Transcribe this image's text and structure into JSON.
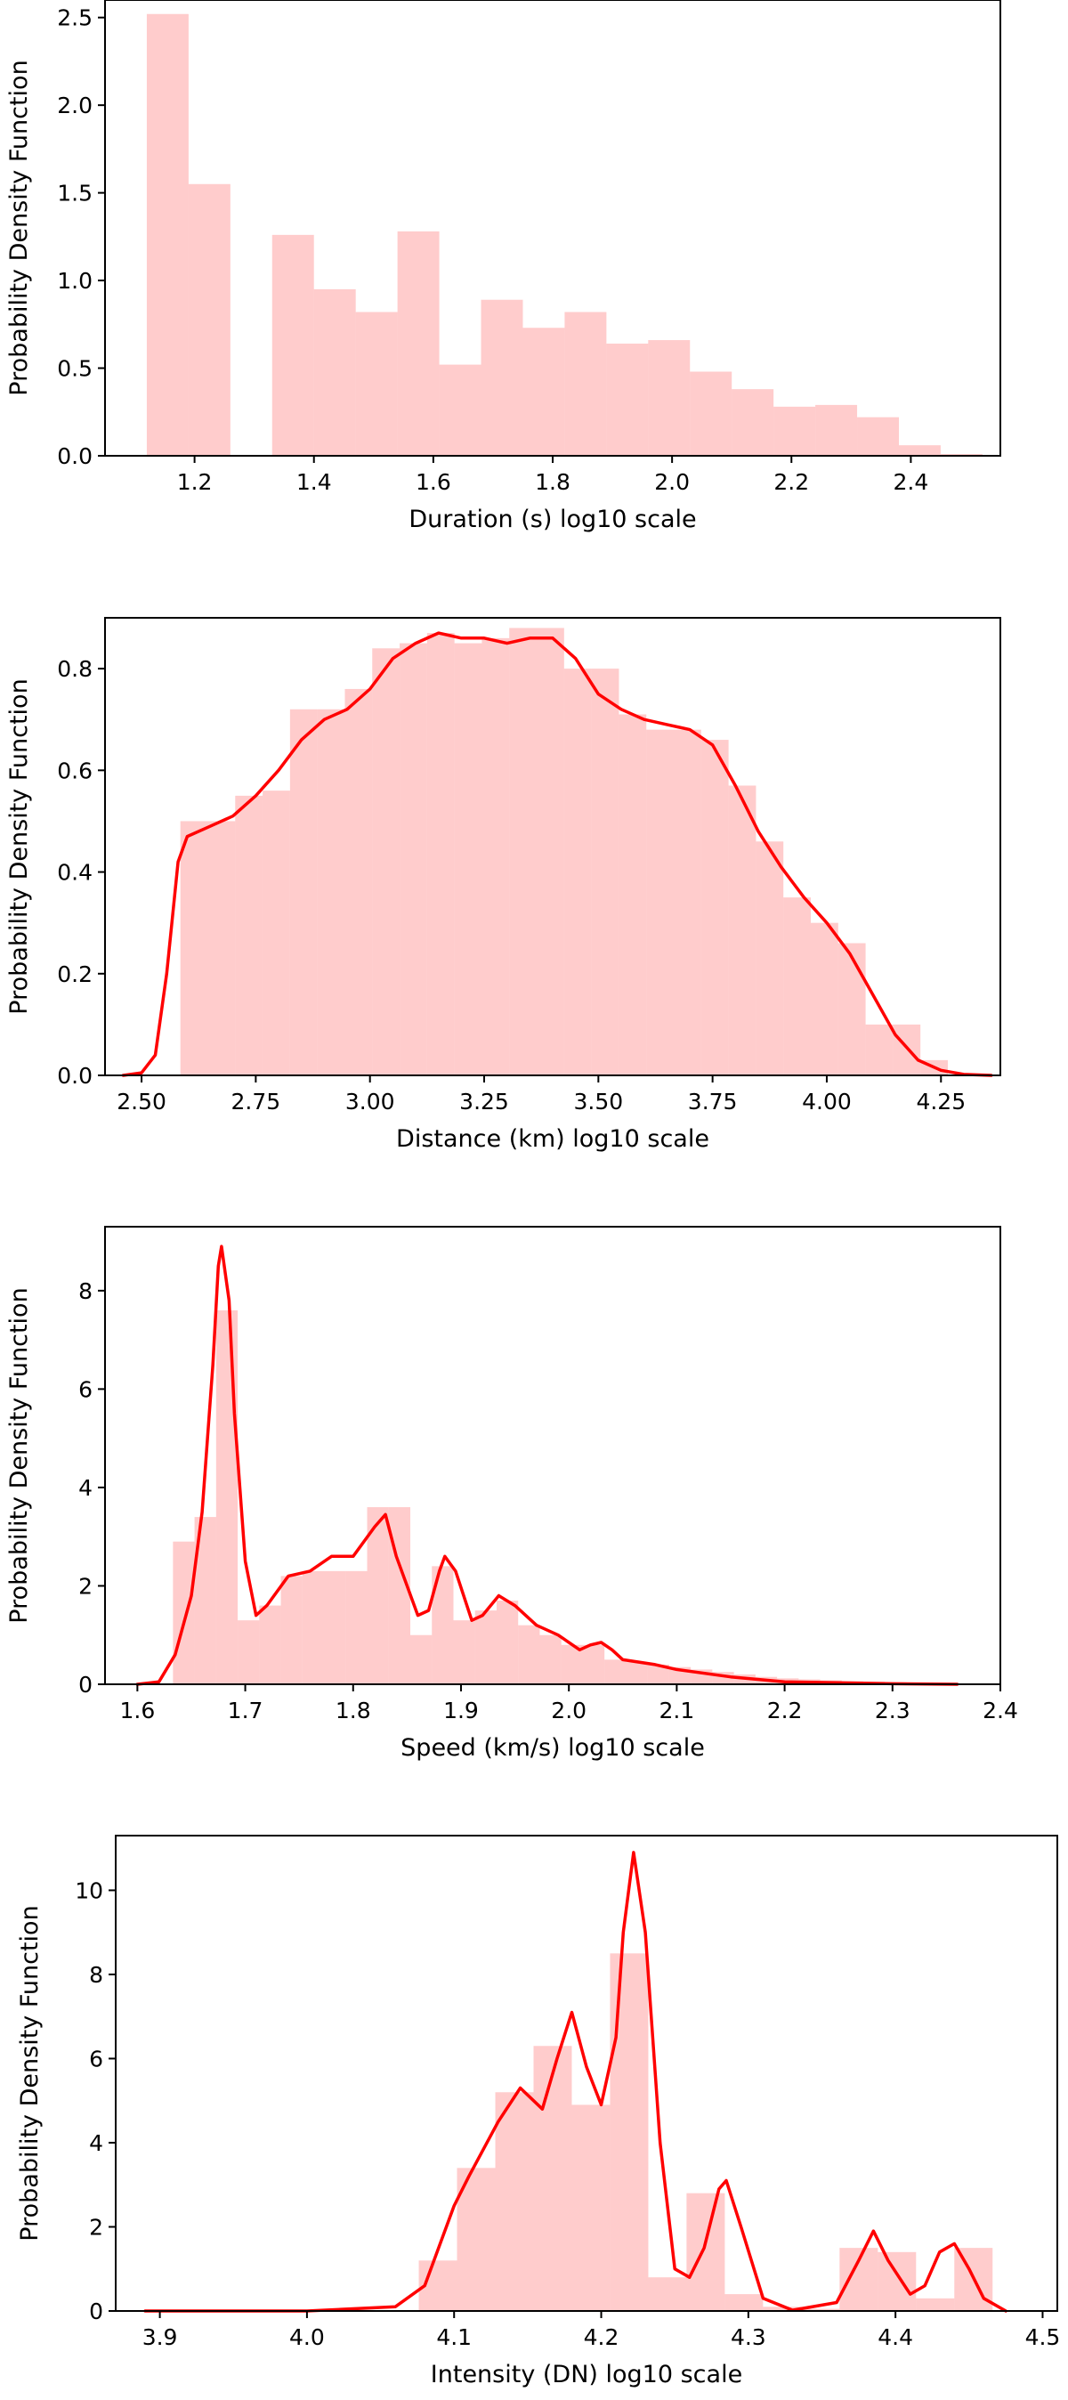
{
  "colors": {
    "bar": "#ff9999",
    "kde": "#ff0000",
    "frame": "#000000"
  },
  "chart_data": [
    {
      "type": "bar",
      "xlabel": "Duration (s) log10 scale",
      "ylabel": "Probability Density Function",
      "xlim": [
        1.05,
        2.55
      ],
      "ylim": [
        0,
        2.6
      ],
      "xticks": [
        1.2,
        1.4,
        1.6,
        1.8,
        2.0,
        2.2,
        2.4
      ],
      "xtick_labels": [
        "1.2",
        "1.4",
        "1.6",
        "1.8",
        "2.0",
        "2.2",
        "2.4"
      ],
      "yticks": [
        0.0,
        0.5,
        1.0,
        1.5,
        2.0,
        2.5
      ],
      "ytick_labels": [
        "0.0",
        "0.5",
        "1.0",
        "1.5",
        "2.0",
        "2.5"
      ],
      "bins": [
        {
          "x0": 1.12,
          "x1": 1.19,
          "value": 2.52
        },
        {
          "x0": 1.19,
          "x1": 1.26,
          "value": 1.55
        },
        {
          "x0": 1.33,
          "x1": 1.4,
          "value": 1.26
        },
        {
          "x0": 1.4,
          "x1": 1.47,
          "value": 0.95
        },
        {
          "x0": 1.47,
          "x1": 1.54,
          "value": 0.82
        },
        {
          "x0": 1.54,
          "x1": 1.61,
          "value": 1.28
        },
        {
          "x0": 1.61,
          "x1": 1.68,
          "value": 0.52
        },
        {
          "x0": 1.68,
          "x1": 1.75,
          "value": 0.89
        },
        {
          "x0": 1.75,
          "x1": 1.82,
          "value": 0.73
        },
        {
          "x0": 1.82,
          "x1": 1.89,
          "value": 0.82
        },
        {
          "x0": 1.89,
          "x1": 1.96,
          "value": 0.64
        },
        {
          "x0": 1.96,
          "x1": 2.03,
          "value": 0.66
        },
        {
          "x0": 2.03,
          "x1": 2.1,
          "value": 0.48
        },
        {
          "x0": 2.1,
          "x1": 2.17,
          "value": 0.38
        },
        {
          "x0": 2.17,
          "x1": 2.24,
          "value": 0.28
        },
        {
          "x0": 2.24,
          "x1": 2.31,
          "value": 0.29
        },
        {
          "x0": 2.31,
          "x1": 2.38,
          "value": 0.22
        },
        {
          "x0": 2.38,
          "x1": 2.45,
          "value": 0.06
        },
        {
          "x0": 2.45,
          "x1": 2.52,
          "value": 0.01
        }
      ],
      "kde": []
    },
    {
      "type": "bar",
      "xlabel": "Distance (km) log10 scale",
      "ylabel": "Probability Density Function",
      "xlim": [
        2.42,
        4.38
      ],
      "ylim": [
        0,
        0.9
      ],
      "xticks": [
        2.5,
        2.75,
        3.0,
        3.25,
        3.5,
        3.75,
        4.0,
        4.25
      ],
      "xtick_labels": [
        "2.50",
        "2.75",
        "3.00",
        "3.25",
        "3.50",
        "3.75",
        "4.00",
        "4.25"
      ],
      "yticks": [
        0.0,
        0.2,
        0.4,
        0.6,
        0.8
      ],
      "ytick_labels": [
        "0.0",
        "0.2",
        "0.4",
        "0.6",
        "0.8"
      ],
      "bins": [
        {
          "x0": 2.585,
          "x1": 2.645,
          "value": 0.5
        },
        {
          "x0": 2.645,
          "x1": 2.705,
          "value": 0.5
        },
        {
          "x0": 2.705,
          "x1": 2.765,
          "value": 0.55
        },
        {
          "x0": 2.765,
          "x1": 2.825,
          "value": 0.56
        },
        {
          "x0": 2.825,
          "x1": 2.885,
          "value": 0.72
        },
        {
          "x0": 2.885,
          "x1": 2.945,
          "value": 0.72
        },
        {
          "x0": 2.945,
          "x1": 3.005,
          "value": 0.76
        },
        {
          "x0": 3.005,
          "x1": 3.065,
          "value": 0.84
        },
        {
          "x0": 3.065,
          "x1": 3.125,
          "value": 0.85
        },
        {
          "x0": 3.125,
          "x1": 3.185,
          "value": 0.87
        },
        {
          "x0": 3.185,
          "x1": 3.245,
          "value": 0.85
        },
        {
          "x0": 3.245,
          "x1": 3.305,
          "value": 0.86
        },
        {
          "x0": 3.305,
          "x1": 3.365,
          "value": 0.88
        },
        {
          "x0": 3.365,
          "x1": 3.425,
          "value": 0.88
        },
        {
          "x0": 3.425,
          "x1": 3.485,
          "value": 0.8
        },
        {
          "x0": 3.485,
          "x1": 3.545,
          "value": 0.8
        },
        {
          "x0": 3.545,
          "x1": 3.605,
          "value": 0.71
        },
        {
          "x0": 3.605,
          "x1": 3.665,
          "value": 0.68
        },
        {
          "x0": 3.665,
          "x1": 3.725,
          "value": 0.68
        },
        {
          "x0": 3.725,
          "x1": 3.785,
          "value": 0.66
        },
        {
          "x0": 3.785,
          "x1": 3.845,
          "value": 0.57
        },
        {
          "x0": 3.845,
          "x1": 3.905,
          "value": 0.46
        },
        {
          "x0": 3.905,
          "x1": 3.965,
          "value": 0.35
        },
        {
          "x0": 3.965,
          "x1": 4.025,
          "value": 0.3
        },
        {
          "x0": 4.025,
          "x1": 4.085,
          "value": 0.26
        },
        {
          "x0": 4.085,
          "x1": 4.145,
          "value": 0.1
        },
        {
          "x0": 4.145,
          "x1": 4.205,
          "value": 0.1
        },
        {
          "x0": 4.205,
          "x1": 4.265,
          "value": 0.03
        }
      ],
      "kde": [
        [
          2.46,
          0.0
        ],
        [
          2.5,
          0.005
        ],
        [
          2.53,
          0.04
        ],
        [
          2.555,
          0.2
        ],
        [
          2.58,
          0.42
        ],
        [
          2.6,
          0.47
        ],
        [
          2.65,
          0.49
        ],
        [
          2.7,
          0.51
        ],
        [
          2.75,
          0.55
        ],
        [
          2.8,
          0.6
        ],
        [
          2.85,
          0.66
        ],
        [
          2.9,
          0.7
        ],
        [
          2.95,
          0.72
        ],
        [
          3.0,
          0.76
        ],
        [
          3.05,
          0.82
        ],
        [
          3.1,
          0.85
        ],
        [
          3.15,
          0.87
        ],
        [
          3.2,
          0.86
        ],
        [
          3.25,
          0.86
        ],
        [
          3.3,
          0.85
        ],
        [
          3.35,
          0.86
        ],
        [
          3.4,
          0.86
        ],
        [
          3.45,
          0.82
        ],
        [
          3.5,
          0.75
        ],
        [
          3.55,
          0.72
        ],
        [
          3.6,
          0.7
        ],
        [
          3.65,
          0.69
        ],
        [
          3.7,
          0.68
        ],
        [
          3.75,
          0.65
        ],
        [
          3.8,
          0.57
        ],
        [
          3.85,
          0.48
        ],
        [
          3.9,
          0.41
        ],
        [
          3.95,
          0.35
        ],
        [
          4.0,
          0.3
        ],
        [
          4.05,
          0.24
        ],
        [
          4.1,
          0.16
        ],
        [
          4.15,
          0.08
        ],
        [
          4.2,
          0.03
        ],
        [
          4.25,
          0.01
        ],
        [
          4.3,
          0.002
        ],
        [
          4.36,
          0.0
        ]
      ]
    },
    {
      "type": "bar",
      "xlabel": "Speed (km/s) log10 scale",
      "ylabel": "Probability Density Function",
      "xlim": [
        1.57,
        2.4
      ],
      "ylim": [
        0,
        9.3
      ],
      "xticks": [
        1.6,
        1.7,
        1.8,
        1.9,
        2.0,
        2.1,
        2.2,
        2.3,
        2.4
      ],
      "xtick_labels": [
        "1.6",
        "1.7",
        "1.8",
        "1.9",
        "2.0",
        "2.1",
        "2.2",
        "2.3",
        "2.4"
      ],
      "yticks": [
        0,
        2,
        4,
        6,
        8
      ],
      "ytick_labels": [
        "0",
        "2",
        "4",
        "6",
        "8"
      ],
      "bins": [
        {
          "x0": 1.633,
          "x1": 1.653,
          "value": 2.9
        },
        {
          "x0": 1.653,
          "x1": 1.673,
          "value": 3.4
        },
        {
          "x0": 1.673,
          "x1": 1.693,
          "value": 7.6
        },
        {
          "x0": 1.693,
          "x1": 1.713,
          "value": 1.3
        },
        {
          "x0": 1.713,
          "x1": 1.733,
          "value": 1.6
        },
        {
          "x0": 1.733,
          "x1": 1.753,
          "value": 2.2
        },
        {
          "x0": 1.753,
          "x1": 1.773,
          "value": 2.3
        },
        {
          "x0": 1.773,
          "x1": 1.793,
          "value": 2.3
        },
        {
          "x0": 1.793,
          "x1": 1.813,
          "value": 2.3
        },
        {
          "x0": 1.813,
          "x1": 1.833,
          "value": 3.6
        },
        {
          "x0": 1.833,
          "x1": 1.853,
          "value": 3.6
        },
        {
          "x0": 1.853,
          "x1": 1.873,
          "value": 1.0
        },
        {
          "x0": 1.873,
          "x1": 1.893,
          "value": 2.4
        },
        {
          "x0": 1.893,
          "x1": 1.913,
          "value": 1.3
        },
        {
          "x0": 1.913,
          "x1": 1.933,
          "value": 1.5
        },
        {
          "x0": 1.933,
          "x1": 1.953,
          "value": 1.7
        },
        {
          "x0": 1.953,
          "x1": 1.973,
          "value": 1.2
        },
        {
          "x0": 1.973,
          "x1": 1.993,
          "value": 1.0
        },
        {
          "x0": 1.993,
          "x1": 2.013,
          "value": 0.8
        },
        {
          "x0": 2.013,
          "x1": 2.033,
          "value": 0.8
        },
        {
          "x0": 2.033,
          "x1": 2.053,
          "value": 0.5
        },
        {
          "x0": 2.053,
          "x1": 2.073,
          "value": 0.45
        },
        {
          "x0": 2.073,
          "x1": 2.093,
          "value": 0.4
        },
        {
          "x0": 2.093,
          "x1": 2.113,
          "value": 0.35
        },
        {
          "x0": 2.113,
          "x1": 2.133,
          "value": 0.3
        },
        {
          "x0": 2.133,
          "x1": 2.153,
          "value": 0.25
        },
        {
          "x0": 2.153,
          "x1": 2.173,
          "value": 0.2
        },
        {
          "x0": 2.173,
          "x1": 2.193,
          "value": 0.15
        },
        {
          "x0": 2.193,
          "x1": 2.213,
          "value": 0.12
        },
        {
          "x0": 2.213,
          "x1": 2.233,
          "value": 0.1
        },
        {
          "x0": 2.233,
          "x1": 2.253,
          "value": 0.08
        },
        {
          "x0": 2.253,
          "x1": 2.273,
          "value": 0.06
        },
        {
          "x0": 2.273,
          "x1": 2.293,
          "value": 0.05
        },
        {
          "x0": 2.293,
          "x1": 2.313,
          "value": 0.04
        },
        {
          "x0": 2.313,
          "x1": 2.333,
          "value": 0.03
        },
        {
          "x0": 2.333,
          "x1": 2.353,
          "value": 0.02
        }
      ],
      "kde": [
        [
          1.6,
          0.0
        ],
        [
          1.62,
          0.05
        ],
        [
          1.635,
          0.6
        ],
        [
          1.65,
          1.8
        ],
        [
          1.66,
          3.5
        ],
        [
          1.67,
          6.5
        ],
        [
          1.675,
          8.5
        ],
        [
          1.678,
          8.9
        ],
        [
          1.685,
          7.8
        ],
        [
          1.69,
          5.5
        ],
        [
          1.7,
          2.5
        ],
        [
          1.71,
          1.4
        ],
        [
          1.72,
          1.6
        ],
        [
          1.74,
          2.2
        ],
        [
          1.76,
          2.3
        ],
        [
          1.78,
          2.6
        ],
        [
          1.8,
          2.6
        ],
        [
          1.82,
          3.2
        ],
        [
          1.83,
          3.45
        ],
        [
          1.84,
          2.6
        ],
        [
          1.86,
          1.4
        ],
        [
          1.87,
          1.5
        ],
        [
          1.88,
          2.3
        ],
        [
          1.885,
          2.6
        ],
        [
          1.895,
          2.3
        ],
        [
          1.91,
          1.3
        ],
        [
          1.92,
          1.4
        ],
        [
          1.935,
          1.8
        ],
        [
          1.95,
          1.6
        ],
        [
          1.97,
          1.2
        ],
        [
          1.99,
          1.0
        ],
        [
          2.01,
          0.7
        ],
        [
          2.02,
          0.8
        ],
        [
          2.03,
          0.85
        ],
        [
          2.04,
          0.7
        ],
        [
          2.05,
          0.5
        ],
        [
          2.08,
          0.4
        ],
        [
          2.1,
          0.3
        ],
        [
          2.15,
          0.15
        ],
        [
          2.2,
          0.05
        ],
        [
          2.25,
          0.03
        ],
        [
          2.3,
          0.01
        ],
        [
          2.36,
          0.0
        ]
      ]
    },
    {
      "type": "bar",
      "xlabel": "Intensity (DN) log10 scale",
      "ylabel": "Probability Density Function",
      "xlim": [
        3.87,
        4.51
      ],
      "ylim": [
        0,
        11.3
      ],
      "xticks": [
        3.9,
        4.0,
        4.1,
        4.2,
        4.3,
        4.4,
        4.5
      ],
      "xtick_labels": [
        "3.9",
        "4.0",
        "4.1",
        "4.2",
        "4.3",
        "4.4",
        "4.5"
      ],
      "yticks": [
        0,
        2,
        4,
        6,
        8,
        10
      ],
      "ytick_labels": [
        "0",
        "2",
        "4",
        "6",
        "8",
        "10"
      ],
      "bins": [
        {
          "x0": 4.076,
          "x1": 4.102,
          "value": 1.2
        },
        {
          "x0": 4.102,
          "x1": 4.128,
          "value": 3.4
        },
        {
          "x0": 4.128,
          "x1": 4.154,
          "value": 5.2
        },
        {
          "x0": 4.154,
          "x1": 4.18,
          "value": 6.3
        },
        {
          "x0": 4.18,
          "x1": 4.206,
          "value": 4.9
        },
        {
          "x0": 4.206,
          "x1": 4.232,
          "value": 8.5
        },
        {
          "x0": 4.232,
          "x1": 4.258,
          "value": 0.8
        },
        {
          "x0": 4.258,
          "x1": 4.284,
          "value": 2.8
        },
        {
          "x0": 4.284,
          "x1": 4.31,
          "value": 0.4
        },
        {
          "x0": 4.31,
          "x1": 4.336,
          "value": 0.1
        },
        {
          "x0": 4.336,
          "x1": 4.362,
          "value": 0.05
        },
        {
          "x0": 4.362,
          "x1": 4.388,
          "value": 1.5
        },
        {
          "x0": 4.388,
          "x1": 4.414,
          "value": 1.4
        },
        {
          "x0": 4.414,
          "x1": 4.44,
          "value": 0.3
        },
        {
          "x0": 4.44,
          "x1": 4.466,
          "value": 1.5
        }
      ],
      "kde": [
        [
          3.89,
          0.0
        ],
        [
          4.0,
          0.0
        ],
        [
          4.06,
          0.1
        ],
        [
          4.08,
          0.6
        ],
        [
          4.1,
          2.5
        ],
        [
          4.11,
          3.2
        ],
        [
          4.13,
          4.5
        ],
        [
          4.145,
          5.3
        ],
        [
          4.16,
          4.8
        ],
        [
          4.17,
          6.0
        ],
        [
          4.18,
          7.1
        ],
        [
          4.19,
          5.8
        ],
        [
          4.2,
          4.9
        ],
        [
          4.21,
          6.5
        ],
        [
          4.215,
          9.0
        ],
        [
          4.222,
          10.9
        ],
        [
          4.23,
          9.0
        ],
        [
          4.24,
          4.0
        ],
        [
          4.25,
          1.0
        ],
        [
          4.26,
          0.8
        ],
        [
          4.27,
          1.5
        ],
        [
          4.28,
          2.9
        ],
        [
          4.285,
          3.1
        ],
        [
          4.295,
          2.0
        ],
        [
          4.31,
          0.3
        ],
        [
          4.33,
          0.02
        ],
        [
          4.36,
          0.2
        ],
        [
          4.375,
          1.2
        ],
        [
          4.385,
          1.9
        ],
        [
          4.395,
          1.2
        ],
        [
          4.41,
          0.4
        ],
        [
          4.42,
          0.6
        ],
        [
          4.43,
          1.4
        ],
        [
          4.44,
          1.6
        ],
        [
          4.45,
          1.0
        ],
        [
          4.46,
          0.3
        ],
        [
          4.475,
          0.0
        ]
      ]
    }
  ]
}
